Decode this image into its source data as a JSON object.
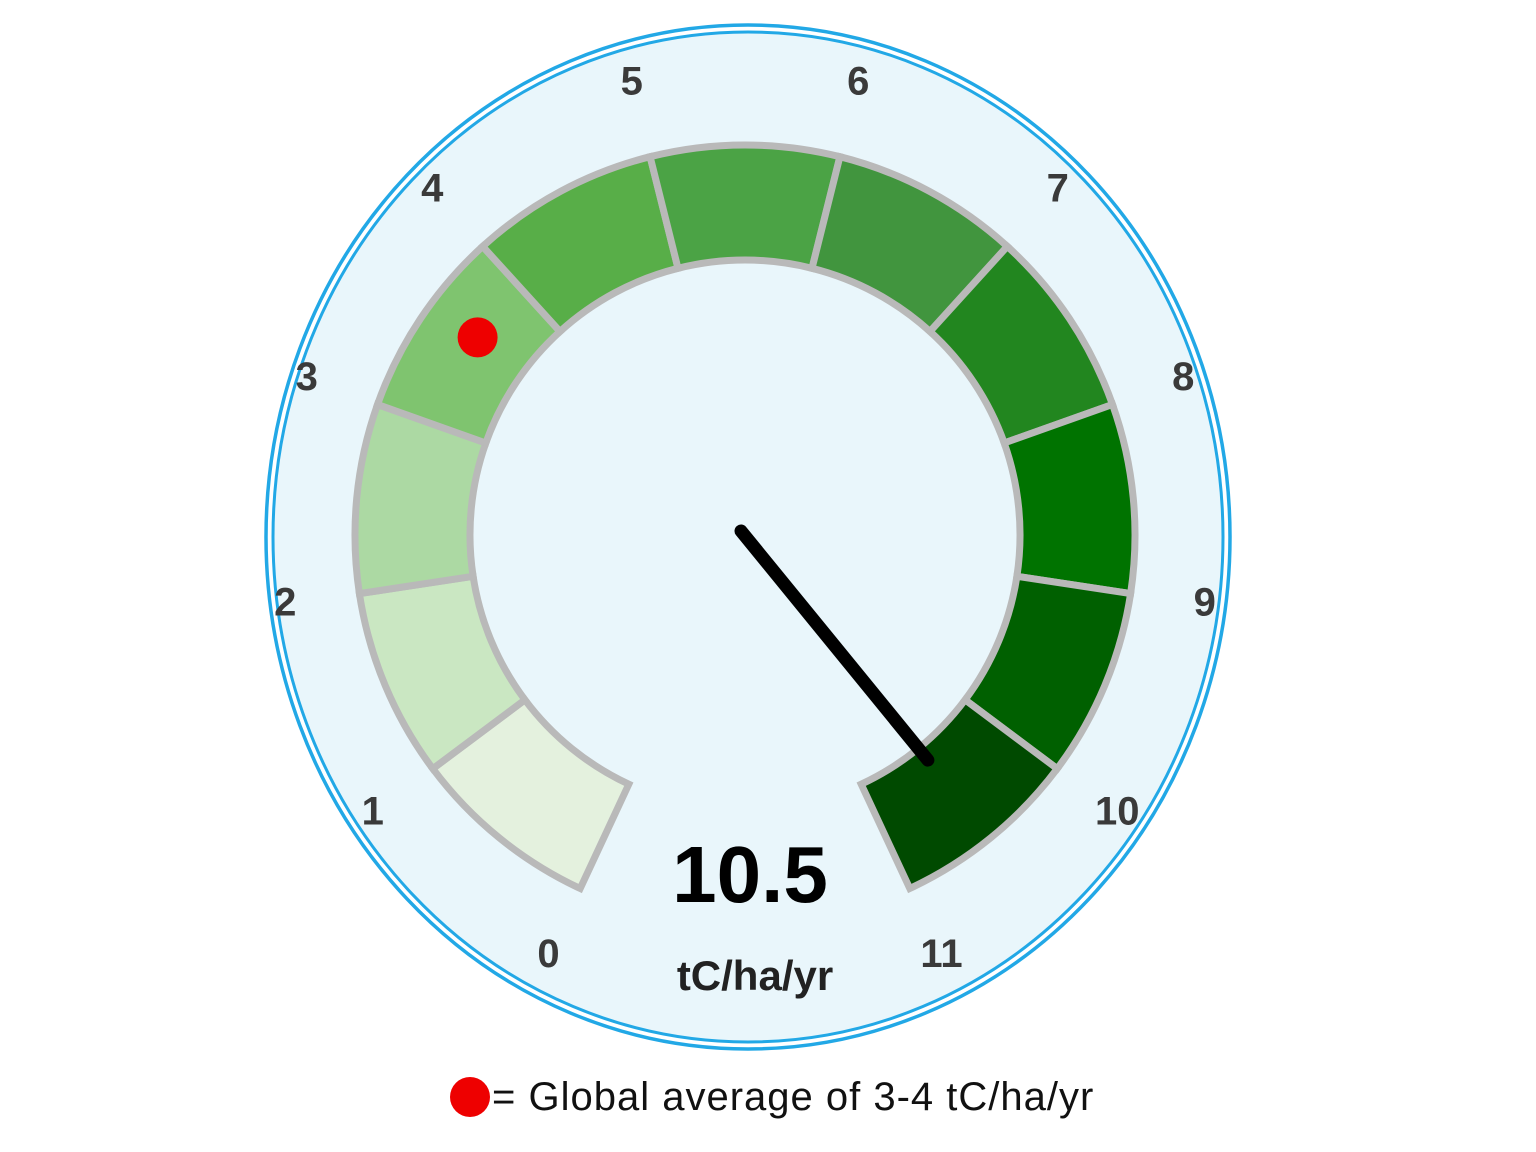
{
  "chart_data": {
    "type": "gauge",
    "value": 10.5,
    "value_label": "10.5",
    "unit": "tC/ha/yr",
    "min": 0,
    "max": 11,
    "ticks": [
      "0",
      "1",
      "2",
      "3",
      "4",
      "5",
      "6",
      "7",
      "8",
      "9",
      "10",
      "11"
    ],
    "segment_colors": [
      "#e4f1de",
      "#cae7c2",
      "#acd9a3",
      "#7fc46f",
      "#58ae48",
      "#4ba345",
      "#41953e",
      "#22861f",
      "#007300",
      "#006000",
      "#004a00"
    ],
    "marker": {
      "value": 3.6,
      "color": "#ee0000",
      "legend_text": "= Global average of 3-4 tC/ha/yr"
    },
    "face_color": "#e9f6fb",
    "rim_color": "#22a8e6",
    "needle_color": "#000000"
  }
}
